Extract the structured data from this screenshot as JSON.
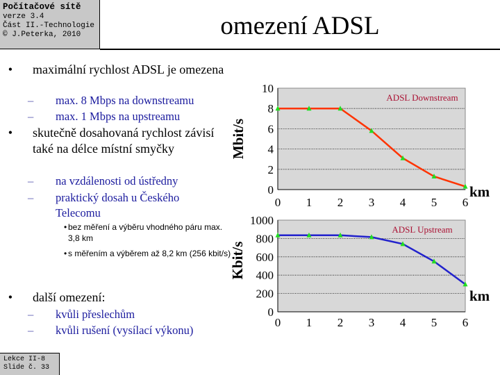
{
  "header": {
    "course_title": "Počítačové sítě",
    "version": "verze 3.4",
    "part": "Část II.-Technologie",
    "copyright": "© J.Peterka, 2010"
  },
  "title": "omezení ADSL",
  "bullets": {
    "b1": "maximální rychlost ADSL je omezena",
    "b1_1": "max. 8 Mbps na downstreamu",
    "b1_2": "max. 1 Mbps na upstreamu",
    "b2": "skutečně dosahovaná rychlost závisí také na délce místní smyčky",
    "b2_1": "na vzdálenosti od ústředny",
    "b2_2": "praktický dosah u Českého Telecomu",
    "b2_2_1": "bez měření a výběru vhodného páru max. 3,8 km",
    "b2_2_2": "s měřením a výběrem až 8,2 km (256 kbit/s)",
    "b3": "další omezení:",
    "b3_1": "kvůli přeslechům",
    "b3_2": "kvůli rušení (vysílací výkonu)"
  },
  "footer": {
    "lecture": "Lekce II-8",
    "slide": "Slide č. 33"
  },
  "colors": {
    "downstream": "#ff3300",
    "upstream": "#2222cc",
    "markers": "#22dd22",
    "chart_label": "#aa1133",
    "plot_bg": "#d8d8d8"
  },
  "chart_data": [
    {
      "type": "line",
      "series_label": "ADSL Downstream",
      "ylabel": "Mbit/s",
      "xlabel": "km",
      "ylim": [
        0,
        10
      ],
      "yticks": [
        0,
        2,
        4,
        6,
        8,
        10
      ],
      "xticks": [
        0,
        1,
        2,
        3,
        4,
        5,
        6
      ],
      "x": [
        0,
        1,
        2,
        3,
        4,
        5,
        6
      ],
      "y": [
        8,
        8,
        8,
        5.8,
        3.1,
        1.3,
        0.3
      ],
      "grid": "horizontal"
    },
    {
      "type": "line",
      "series_label": "ADSL Upstream",
      "ylabel": "Kbit/s",
      "xlabel": "km",
      "ylim": [
        0,
        1000
      ],
      "yticks": [
        0,
        200,
        400,
        600,
        800,
        1000
      ],
      "xticks": [
        0,
        1,
        2,
        3,
        4,
        5,
        6
      ],
      "x": [
        0,
        1,
        2,
        3,
        4,
        5,
        6
      ],
      "y": [
        835,
        835,
        835,
        815,
        740,
        550,
        300
      ],
      "grid": "horizontal"
    }
  ]
}
